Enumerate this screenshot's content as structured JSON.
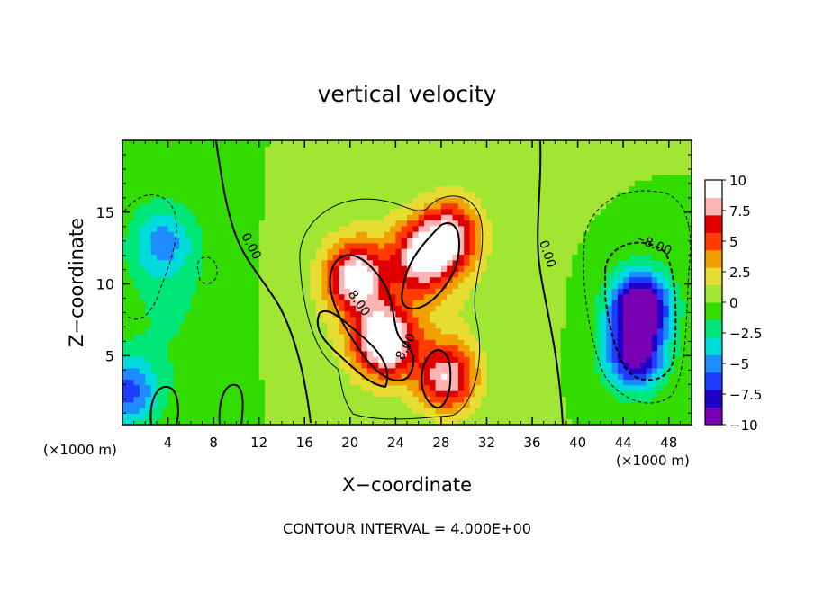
{
  "chart_data": {
    "type": "heatmap",
    "title": "vertical velocity",
    "xlabel": "X−coordinate",
    "ylabel": "Z−coordinate",
    "x_unit_left": "(×1000 m)",
    "x_unit_right": "(×1000 m)",
    "footer": "CONTOUR INTERVAL = 4.000E+00",
    "xlim": [
      0,
      50
    ],
    "ylim": [
      0.2,
      20
    ],
    "x_ticks": [
      4,
      8,
      12,
      16,
      20,
      24,
      28,
      32,
      36,
      40,
      44,
      48
    ],
    "x_tick_labels": [
      "4",
      "8",
      "12",
      "16",
      "20",
      "24",
      "28",
      "32",
      "36",
      "40",
      "44",
      "48"
    ],
    "y_ticks": [
      5,
      10,
      15
    ],
    "y_tick_labels": [
      "5",
      "10",
      "15"
    ],
    "colorbar": {
      "min": -10,
      "max": 10,
      "ticks": [
        10,
        7.5,
        5,
        2.5,
        0,
        -2.5,
        -5,
        -7.5,
        -10
      ],
      "tick_labels": [
        "10",
        "7.5",
        "5",
        "2.5",
        "0",
        "−2.5",
        "−5",
        "−7.5",
        "−10"
      ],
      "colors": [
        "#7a00b4",
        "#2000c8",
        "#1e3cff",
        "#1e8cff",
        "#00dcdc",
        "#00e678",
        "#32dc00",
        "#a0e632",
        "#e6dc32",
        "#f0a000",
        "#ff3c00",
        "#e10000",
        "#ffb4b4",
        "#ffffff"
      ]
    },
    "contour_labels": [
      {
        "text": "0.00",
        "x": 11,
        "z": 12.5,
        "angle": 62
      },
      {
        "text": "0.00",
        "x": 37,
        "z": 12.0,
        "angle": 72
      },
      {
        "text": "8.00",
        "x": 20.5,
        "z": 8.5,
        "angle": 55
      },
      {
        "text": "8.00",
        "x": 25.2,
        "z": 5.5,
        "angle": -62
      },
      {
        "text": "−8.00",
        "x": 46.5,
        "z": 12.5,
        "angle": 22
      }
    ],
    "features": [
      {
        "name": "updraft left lobe",
        "x": 20.5,
        "z": 10.5,
        "w": 8.5
      },
      {
        "name": "updraft right lobe",
        "x": 26.5,
        "z": 12.0,
        "w": 8.0
      },
      {
        "name": "updraft lower core",
        "x": 23.0,
        "z": 6.0,
        "w": 10.0
      },
      {
        "name": "updraft low branch",
        "x": 28.5,
        "z": 3.5,
        "w": 8.0
      },
      {
        "name": "updraft upper lobe",
        "x": 29.0,
        "z": 13.5,
        "w": 7.0
      },
      {
        "name": "downdraft core",
        "x": 45.5,
        "z": 8.5,
        "w": -11.5
      },
      {
        "name": "downdraft lower",
        "x": 45.0,
        "z": 5.0,
        "w": -9.0
      },
      {
        "name": "downdraft left",
        "x": 3.5,
        "z": 13.0,
        "w": -4.0
      },
      {
        "name": "downdraft left edge",
        "x": 0.5,
        "z": 2.5,
        "w": -6.0
      }
    ]
  }
}
